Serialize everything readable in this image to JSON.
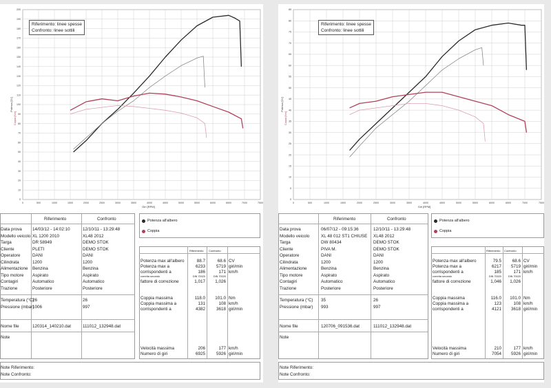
{
  "panels": [
    {
      "id": "left",
      "legend_box": [
        "Riferimento: linee spesse",
        "Confronto: linee sottili"
      ],
      "info": {
        "headers": [
          "Riferimento",
          "Confronto"
        ],
        "rows": [
          {
            "label": "Data prova",
            "ref": "14/03/12 - 14:02:10",
            "cmp": "12/10/11 - 13:29:48"
          },
          {
            "label": "Modello veicolo",
            "ref": "XL 1200 2010",
            "cmp": "XL48 2012"
          },
          {
            "label": "Targa",
            "ref": "DR 58949",
            "cmp": "DEMO STOK"
          },
          {
            "label": "Cliente",
            "ref": "PLETI",
            "cmp": "DEMO STOK"
          },
          {
            "label": "Operatore",
            "ref": "DANI",
            "cmp": "DANI"
          },
          {
            "label": "Cilindrata",
            "ref": "1200",
            "cmp": "1200"
          },
          {
            "label": "Alimentazione",
            "ref": "Benzina",
            "cmp": "Benzina"
          },
          {
            "label": "Tipo motore",
            "ref": "Aspirato",
            "cmp": "Aspirato"
          },
          {
            "label": "Contagiri",
            "ref": "Automatico",
            "cmp": "Automatico"
          },
          {
            "label": "Trazione",
            "ref": "Posteriore",
            "cmp": "Posteriore"
          }
        ],
        "env": [
          {
            "label": "Temperatura (°C)",
            "ref": "26",
            "cmp": "26"
          },
          {
            "label": "Pressione (mbar)",
            "ref": "1006",
            "cmp": "997"
          }
        ],
        "file": {
          "label": "Nome file",
          "ref": "120314_140210.dat",
          "cmp": "111012_132948.dat"
        },
        "note": "Note",
        "note_ref": "Note Riferimento:",
        "note_cmp": "Note Confronto:"
      },
      "legend": {
        "power": "Potenza all'albero",
        "torque": "Coppia"
      },
      "results": {
        "headers": [
          "Riferimento",
          "Confronto"
        ],
        "power_label": "Potenza max all'albero",
        "power_ref": "88.7",
        "power_cmp": "68.6",
        "power_unit": "CV",
        "pmax_rpm_label": "Potenza max a",
        "pmax_rpm_ref": "6233",
        "pmax_rpm_cmp": "5719",
        "pmax_rpm_unit": "giri/min",
        "pmax_kmh_label": "corrispondenti a",
        "pmax_kmh_ref": "186",
        "pmax_kmh_cmp": "171",
        "pmax_kmh_unit": "km/h",
        "corr_label": "corretta secondo",
        "corr_ref": "DIN 70020",
        "corr_cmp": "DIN 70020",
        "factor_label": "fattore di correzione",
        "factor_ref": "1,017",
        "factor_cmp": "1,026",
        "torque_label": "Coppia massima",
        "torque_ref": "118.0",
        "torque_cmp": "101.0",
        "torque_unit": "Nm",
        "tmax_kmh_label": "Coppia massima a",
        "tmax_kmh_ref": "131",
        "tmax_kmh_cmp": "108",
        "tmax_kmh_unit": "km/h",
        "tmax_rpm_label": "corrispondenti a",
        "tmax_rpm_ref": "4382",
        "tmax_rpm_cmp": "3618",
        "tmax_rpm_unit": "giri/min",
        "speed_label": "Velocità massima",
        "speed_ref": "206",
        "speed_cmp": "177",
        "speed_unit": "km/h",
        "revs_label": "Numero di giri",
        "revs_ref": "6925",
        "revs_cmp": "5926",
        "revs_unit": "giri/min"
      }
    },
    {
      "id": "right",
      "legend_box": [
        "Riferimento: linee spesse",
        "Confronto: linee sottili"
      ],
      "info": {
        "headers": [
          "Riferimento",
          "Confronto"
        ],
        "rows": [
          {
            "label": "Data prova",
            "ref": "06/07/12 - 09:15:36",
            "cmp": "12/10/11 - 13:29:48"
          },
          {
            "label": "Modello veicolo",
            "ref": "XL 48 012 ST1 CHIUSE",
            "cmp": "XL48 2012"
          },
          {
            "label": "Targa",
            "ref": "DW 80434",
            "cmp": "DEMO STOK"
          },
          {
            "label": "Cliente",
            "ref": "PIVA M.",
            "cmp": "DEMO STOK"
          },
          {
            "label": "Operatore",
            "ref": "DANI",
            "cmp": "DANI"
          },
          {
            "label": "Cilindrata",
            "ref": "1200",
            "cmp": "1200"
          },
          {
            "label": "Alimentazione",
            "ref": "Benzina",
            "cmp": "Benzina"
          },
          {
            "label": "Tipo motore",
            "ref": "Aspirato",
            "cmp": "Aspirato"
          },
          {
            "label": "Contagiri",
            "ref": "Automatico",
            "cmp": "Automatico"
          },
          {
            "label": "Trazione",
            "ref": "Posteriore",
            "cmp": "Posteriore"
          }
        ],
        "env": [
          {
            "label": "Temperatura (°C)",
            "ref": "35",
            "cmp": "26"
          },
          {
            "label": "Pressione (mbar)",
            "ref": "993",
            "cmp": "997"
          }
        ],
        "file": {
          "label": "Nome file",
          "ref": "120706_091536.dat",
          "cmp": "111012_132948.dat"
        },
        "note": "Note",
        "note_ref": "Note Riferimento:",
        "note_cmp": "Note Confronto:"
      },
      "legend": {
        "power": "Potenza all'albero",
        "torque": "Coppia"
      },
      "results": {
        "headers": [
          "Riferimento",
          "Confronto"
        ],
        "power_label": "Potenza max all'albero",
        "power_ref": "79.5",
        "power_cmp": "68.6",
        "power_unit": "CV",
        "pmax_rpm_label": "Potenza max a",
        "pmax_rpm_ref": "6217",
        "pmax_rpm_cmp": "5719",
        "pmax_rpm_unit": "giri/min",
        "pmax_kmh_label": "corrispondenti a",
        "pmax_kmh_ref": "185",
        "pmax_kmh_cmp": "171",
        "pmax_kmh_unit": "km/h",
        "corr_label": "corretta secondo",
        "corr_ref": "DIN 70020",
        "corr_cmp": "DIN 70020",
        "factor_label": "fattore di correzione",
        "factor_ref": "1,046",
        "factor_cmp": "1,026",
        "torque_label": "Coppia massima",
        "torque_ref": "116.0",
        "torque_cmp": "101.0",
        "torque_unit": "Nm",
        "tmax_kmh_label": "Coppia massima a",
        "tmax_kmh_ref": "123",
        "tmax_kmh_cmp": "108",
        "tmax_kmh_unit": "km/h",
        "tmax_rpm_label": "corrispondenti a",
        "tmax_rpm_ref": "4121",
        "tmax_rpm_cmp": "3618",
        "tmax_rpm_unit": "giri/min",
        "speed_label": "Velocità massima",
        "speed_ref": "210",
        "speed_cmp": "177",
        "speed_unit": "km/h",
        "revs_label": "Numero di giri",
        "revs_ref": "7054",
        "revs_cmp": "5926",
        "revs_unit": "giri/min"
      }
    }
  ],
  "chart_data": [
    {
      "type": "line",
      "panel": "left",
      "xlabel": "Giri [RPM]",
      "ylabel_left": "Potenza [CV]",
      "ylabel_right": "Coppia [Nm]",
      "xlim": [
        0,
        7500
      ],
      "ylim": [
        0,
        200
      ],
      "x_ticks": [
        "0",
        "500",
        "1000",
        "1500",
        "2000",
        "2500",
        "3000",
        "3500",
        "4000",
        "4500",
        "5000",
        "5500",
        "6000",
        "6500",
        "7000",
        "7500"
      ],
      "y_ticks": [
        "0",
        "10",
        "20",
        "30",
        "40",
        "50",
        "60",
        "70",
        "80",
        "90",
        "100",
        "110",
        "120",
        "130",
        "140",
        "150",
        "160",
        "170",
        "180",
        "190",
        "200"
      ],
      "series": [
        {
          "name": "Potenza all'albero - Riferimento",
          "color": "#2a2a2a",
          "width": 1.3,
          "x": [
            1600,
            2000,
            2500,
            3000,
            3500,
            4000,
            4500,
            5000,
            5500,
            6000,
            6500,
            6700,
            6850,
            6900
          ],
          "y": [
            50,
            62,
            80,
            95,
            112,
            130,
            150,
            168,
            183,
            192,
            194,
            191,
            188,
            140
          ]
        },
        {
          "name": "Potenza all'albero - Confronto",
          "color": "#8a8a8a",
          "width": 0.8,
          "x": [
            1600,
            2000,
            2500,
            3000,
            3500,
            4000,
            4500,
            5000,
            5500,
            5700,
            5750
          ],
          "y": [
            53,
            65,
            80,
            93,
            104,
            118,
            130,
            141,
            149,
            151,
            118
          ]
        },
        {
          "name": "Coppia - Riferimento",
          "color": "#b0405a",
          "width": 1.3,
          "x": [
            1500,
            2000,
            2500,
            3000,
            3500,
            4000,
            4500,
            5000,
            5500,
            6000,
            6500,
            6900,
            6950
          ],
          "y": [
            94,
            103,
            106,
            104,
            109,
            112,
            111,
            108,
            104,
            98,
            92,
            85,
            75
          ]
        },
        {
          "name": "Coppia - Confronto",
          "color": "#dba0b0",
          "width": 0.8,
          "x": [
            1500,
            2000,
            2500,
            3000,
            3500,
            4000,
            4500,
            5000,
            5500,
            5750,
            5800
          ],
          "y": [
            90,
            95,
            97,
            99,
            98,
            96,
            94,
            91,
            86,
            80,
            65
          ]
        }
      ]
    },
    {
      "type": "line",
      "panel": "right",
      "xlabel": "Giri [RPM]",
      "ylabel_left": "Potenza [CV]",
      "ylabel_right": "Coppia [Nm]",
      "xlim": [
        0,
        7500
      ],
      "ylim": [
        0,
        85
      ],
      "x_ticks": [
        "0",
        "500",
        "1000",
        "1500",
        "2000",
        "2500",
        "3000",
        "3500",
        "4000",
        "4500",
        "5000",
        "5500",
        "6000",
        "6500",
        "7000",
        "7500"
      ],
      "y_ticks": [
        "0",
        "5",
        "10",
        "15",
        "20",
        "25",
        "30",
        "35",
        "40",
        "45",
        "50",
        "55",
        "60",
        "65",
        "70",
        "75",
        "80",
        "85"
      ],
      "series": [
        {
          "name": "Potenza all'albero - Riferimento",
          "color": "#2a2a2a",
          "width": 1.3,
          "x": [
            1700,
            2000,
            2500,
            3000,
            3500,
            4000,
            4500,
            5000,
            5500,
            6000,
            6500,
            6900,
            7000,
            7050
          ],
          "y": [
            22,
            27,
            34,
            41,
            48,
            55,
            64,
            71,
            76,
            78,
            79,
            78,
            78,
            58
          ]
        },
        {
          "name": "Potenza all'albero - Confronto",
          "color": "#8a8a8a",
          "width": 0.8,
          "x": [
            1700,
            2000,
            2500,
            3000,
            3500,
            4000,
            4500,
            5000,
            5500,
            5700,
            5750
          ],
          "y": [
            19,
            24,
            32,
            38,
            44,
            51,
            58,
            63,
            67,
            68,
            60
          ]
        },
        {
          "name": "Coppia - Riferimento",
          "color": "#b0405a",
          "width": 1.3,
          "x": [
            1700,
            2000,
            2500,
            3000,
            3500,
            4000,
            4500,
            5000,
            5500,
            6000,
            6500,
            7000,
            7050
          ],
          "y": [
            41,
            43,
            44,
            46,
            47,
            48,
            48,
            46,
            44,
            42,
            38,
            35,
            30
          ]
        },
        {
          "name": "Coppia - Confronto",
          "color": "#dba0b0",
          "width": 0.8,
          "x": [
            1700,
            2000,
            2500,
            3000,
            3500,
            4000,
            4500,
            5000,
            5500,
            5750,
            5800
          ],
          "y": [
            38,
            40,
            41,
            42,
            43,
            43,
            42,
            40,
            37,
            34,
            26
          ]
        }
      ]
    }
  ]
}
